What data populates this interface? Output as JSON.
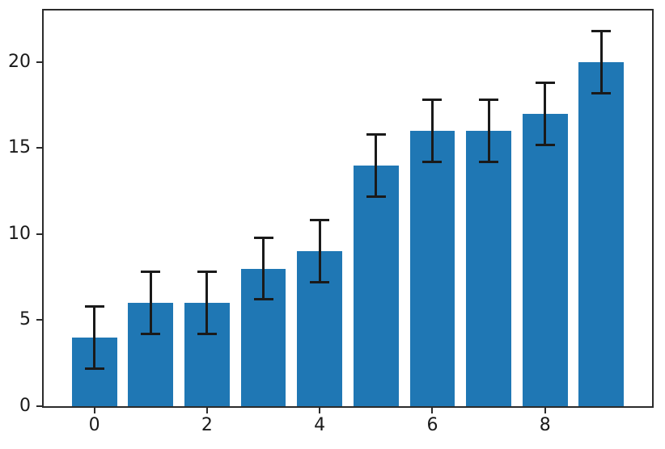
{
  "figure": {
    "background": "#ffffff"
  },
  "chart_data": {
    "type": "bar",
    "categories": [
      0,
      1,
      2,
      3,
      4,
      5,
      6,
      7,
      8,
      9
    ],
    "values": [
      4,
      6,
      6,
      8,
      9,
      14,
      16,
      16,
      17,
      20
    ],
    "yerr": [
      1.8,
      1.8,
      1.8,
      1.8,
      1.8,
      1.8,
      1.8,
      1.8,
      1.8,
      1.8
    ],
    "title": "",
    "xlabel": "",
    "ylabel": "",
    "xlim": [
      -0.9,
      9.9
    ],
    "ylim": [
      0,
      23
    ],
    "xticks": [
      0,
      2,
      4,
      6,
      8
    ],
    "xtick_labels": [
      "0",
      "2",
      "4",
      "6",
      "8"
    ],
    "yticks": [
      0,
      5,
      10,
      15,
      20
    ],
    "ytick_labels": [
      "0",
      "5",
      "10",
      "15",
      "20"
    ],
    "bar_width": 0.8,
    "bar_color": "#1f77b4",
    "error_color": "#1a1a1a",
    "spine_color": "#2b2b2b",
    "grid": false,
    "legend": null
  }
}
